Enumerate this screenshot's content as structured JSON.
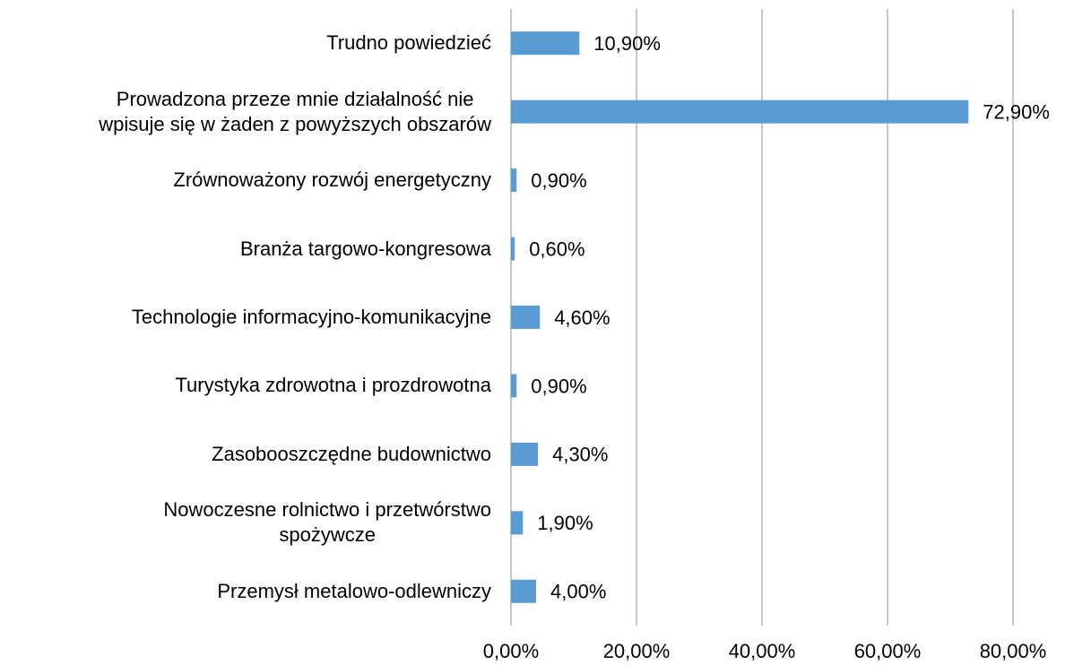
{
  "chart_data": {
    "type": "barh",
    "categories": [
      "Trudno powiedzieć",
      "Prowadzona przeze mnie działalność nie\nwpisuje się w żaden z powyższych obszarów",
      "Zrównoważony rozwój energetyczny",
      "Branża targowo-kongresowa",
      "Technologie informacyjno-komunikacyjne",
      "Turystyka zdrowotna i prozdrowotna",
      "Zasobooszczędne budownictwo",
      "Nowoczesne rolnictwo i przetwórstwo\nspożywcze",
      "Przemysł metalowo-odlewniczy"
    ],
    "values": [
      10.9,
      72.9,
      0.9,
      0.6,
      4.6,
      0.9,
      4.3,
      1.9,
      4.0
    ],
    "value_labels": [
      "10,90%",
      "72,90%",
      "0,90%",
      "0,60%",
      "4,60%",
      "0,90%",
      "4,30%",
      "1,90%",
      "4,00%"
    ],
    "color": "#5b9bd5",
    "xlim": [
      0,
      80
    ],
    "xticks": [
      {
        "value": 0,
        "label": "0,00%"
      },
      {
        "value": 20,
        "label": "20,00%"
      },
      {
        "value": 40,
        "label": "40,00%"
      },
      {
        "value": 60,
        "label": "60,00%"
      },
      {
        "value": 80,
        "label": "80,00%"
      }
    ],
    "grid": true
  }
}
